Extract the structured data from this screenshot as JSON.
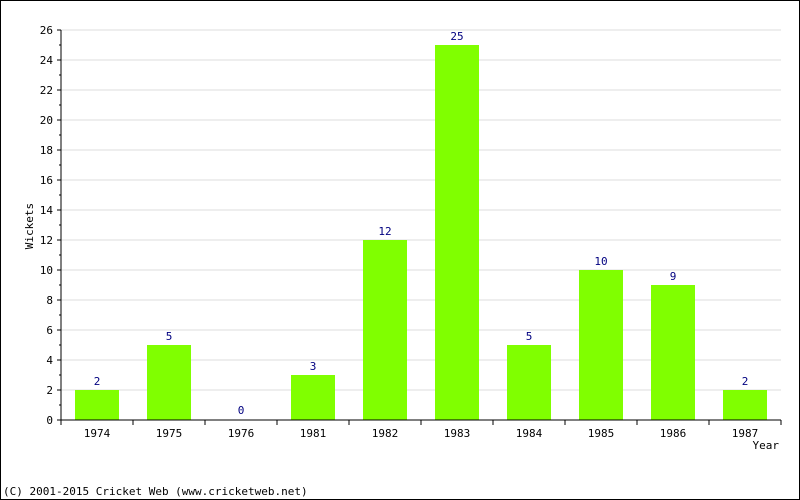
{
  "chart_data": {
    "type": "bar",
    "categories": [
      "1974",
      "1975",
      "1976",
      "1981",
      "1982",
      "1983",
      "1984",
      "1985",
      "1986",
      "1987"
    ],
    "values": [
      2,
      5,
      0,
      3,
      12,
      25,
      5,
      10,
      9,
      2
    ],
    "xlabel": "Year",
    "ylabel": "Wickets",
    "ylim": [
      0,
      26
    ],
    "yticks": [
      0,
      2,
      4,
      6,
      8,
      10,
      12,
      14,
      16,
      18,
      20,
      22,
      24,
      26
    ],
    "grid": true,
    "bar_color": "#80ff00",
    "value_label_color": "#000080"
  },
  "footer": {
    "copyright": "(C) 2001-2015 Cricket Web (www.cricketweb.net)"
  }
}
